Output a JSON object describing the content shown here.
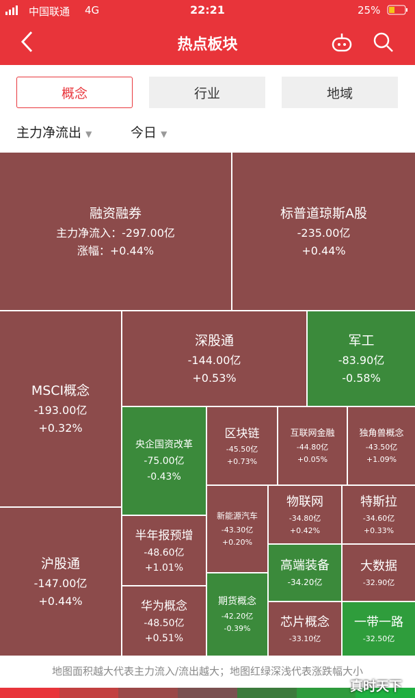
{
  "status_bar": {
    "carrier": "中国联通",
    "network": "4G",
    "time": "22:21",
    "battery": "25%"
  },
  "header": {
    "title": "热点板块"
  },
  "tabs": [
    "概念",
    "行业",
    "地域"
  ],
  "filters": [
    "主力净流出",
    "今日"
  ],
  "treemap": {
    "tiles": [
      {
        "label": "融资融券",
        "lines": [
          "主力净流入：-297.00亿",
          "涨幅：+0.44%"
        ]
      },
      {
        "label": "标普道琼斯A股",
        "lines": [
          "-235.00亿",
          "+0.44%"
        ]
      },
      {
        "label": "MSCI概念",
        "lines": [
          "-193.00亿",
          "+0.32%"
        ]
      },
      {
        "label": "深股通",
        "lines": [
          "-144.00亿",
          "+0.53%"
        ]
      },
      {
        "label": "军工",
        "lines": [
          "-83.90亿",
          "-0.58%"
        ]
      },
      {
        "label": "沪股通",
        "lines": [
          "-147.00亿",
          "+0.44%"
        ]
      },
      {
        "label": "央企国资改革",
        "lines": [
          "-75.00亿",
          "-0.43%"
        ]
      },
      {
        "label": "区块链",
        "lines": [
          "-45.50亿",
          "+0.73%"
        ]
      },
      {
        "label": "互联网金融",
        "lines": [
          "-44.80亿",
          "+0.05%"
        ]
      },
      {
        "label": "独角兽概念",
        "lines": [
          "-43.50亿",
          "+1.09%"
        ]
      },
      {
        "label": "半年报预增",
        "lines": [
          "-48.60亿",
          "+1.01%"
        ]
      },
      {
        "label": "华为概念",
        "lines": [
          "-48.50亿",
          "+0.51%"
        ]
      },
      {
        "label": "新能源汽车",
        "lines": [
          "-43.30亿",
          "+0.20%"
        ]
      },
      {
        "label": "期货概念",
        "lines": [
          "-42.20亿",
          "-0.39%"
        ]
      },
      {
        "label": "物联网",
        "lines": [
          "-34.80亿",
          "+0.42%"
        ]
      },
      {
        "label": "特斯拉",
        "lines": [
          "-34.60亿",
          "+0.33%"
        ]
      },
      {
        "label": "高端装备",
        "lines": [
          "-34.20亿"
        ]
      },
      {
        "label": "大数据",
        "lines": [
          "-32.90亿"
        ]
      },
      {
        "label": "芯片概念",
        "lines": [
          "-33.10亿"
        ]
      },
      {
        "label": "一带一路",
        "lines": [
          "-32.50亿"
        ]
      }
    ]
  },
  "footer": {
    "note": "地图面积越大代表主力流入/流出越大；地图红绿深浅代表涨跌幅大小",
    "watermark": "真时天下"
  }
}
